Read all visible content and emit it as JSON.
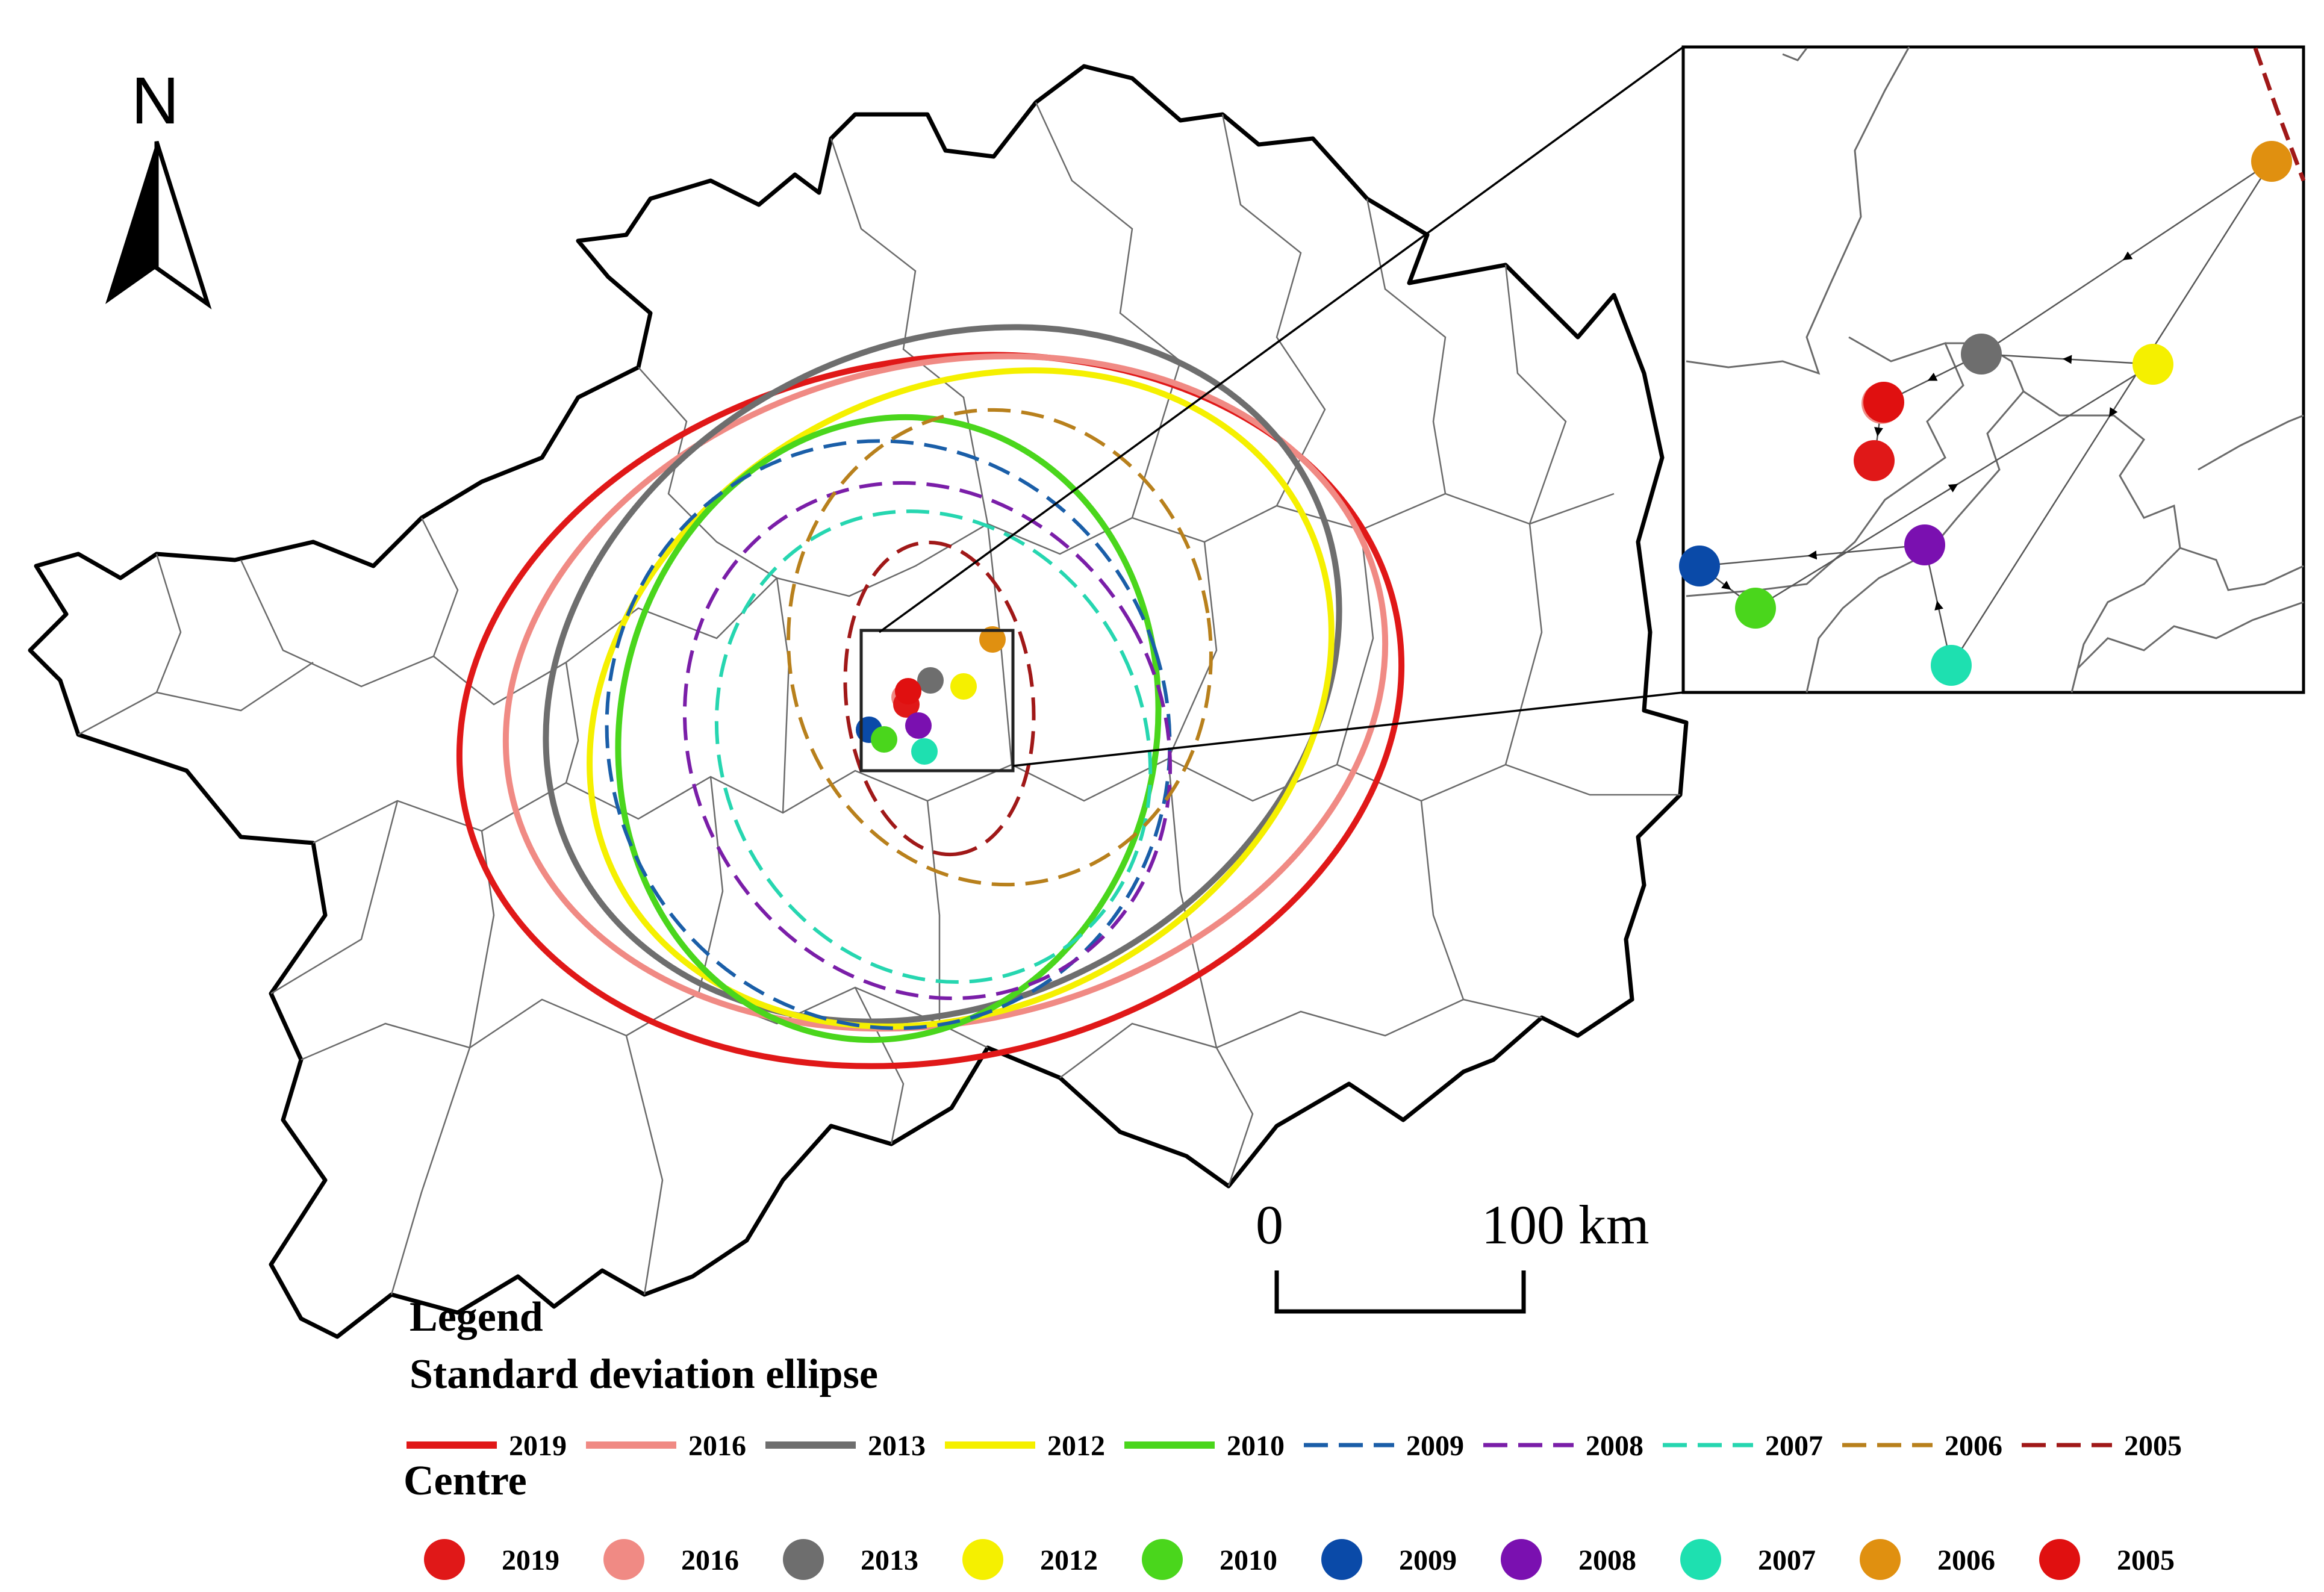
{
  "north_arrow": {
    "letter": "N"
  },
  "scale_bar": {
    "start_label": "0",
    "end_label": "100 km"
  },
  "legend": {
    "title": "Legend",
    "ellipse_section_title": "Standard deviation ellipse",
    "centre_section_title": "Centre"
  },
  "years": [
    {
      "year": "2019",
      "color": "#e01818",
      "dashed": false
    },
    {
      "year": "2016",
      "color": "#f08a84",
      "dashed": false
    },
    {
      "year": "2013",
      "color": "#6e6e6e",
      "dashed": false
    },
    {
      "year": "2012",
      "color": "#f5f000",
      "dashed": false
    },
    {
      "year": "2010",
      "color": "#4ad61c",
      "dashed": false
    },
    {
      "year": "2009",
      "color": "#1a5ea8",
      "dashed": true
    },
    {
      "year": "2008",
      "color": "#7a1ea8",
      "dashed": true
    },
    {
      "year": "2007",
      "color": "#26d6b0",
      "dashed": true
    },
    {
      "year": "2006",
      "color": "#b8801c",
      "dashed": true
    },
    {
      "year": "2005",
      "color": "#a01818",
      "dashed": true
    }
  ],
  "centre_colors": {
    "2019": "#e01818",
    "2016": "#f08a84",
    "2013": "#6e6e6e",
    "2012": "#f5f000",
    "2010": "#4ad61c",
    "2009": "#0a4aa8",
    "2008": "#7a10b0",
    "2007": "#1ee0b0",
    "2006": "#e09010",
    "2005": "#e01010"
  },
  "inset": {
    "title": ""
  }
}
